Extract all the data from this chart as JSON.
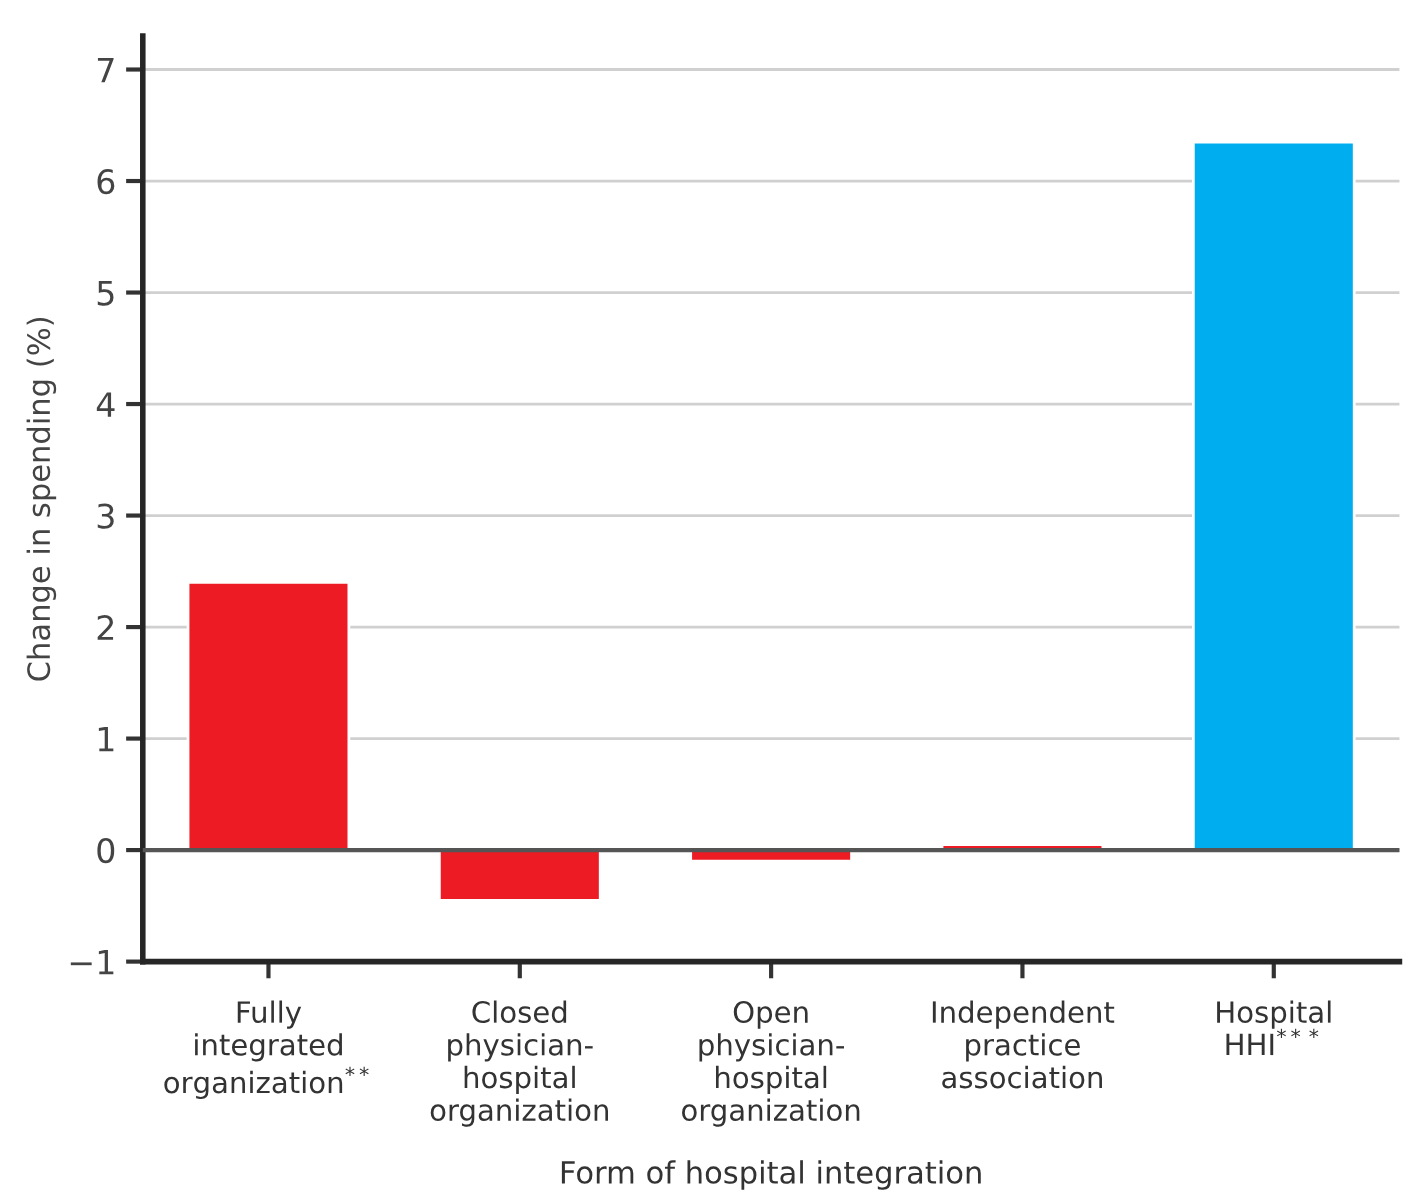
{
  "chart_data": {
    "type": "bar",
    "xlabel": "Form of hospital integration",
    "ylabel": "Change in spending (%)",
    "categories": [
      "Fully\nintegrated\norganization$^{**}$",
      "Closed\nphysician-\nhospital\norganization",
      "Open\nphysician-\nhospital\norganization",
      "Independent\npractice\nassociation",
      "Hospital\nHHI$^{***}$"
    ],
    "values": [
      2.4,
      -0.45,
      -0.1,
      0.05,
      6.35
    ],
    "colors": [
      "#ed1c24",
      "#ed1c24",
      "#ed1c24",
      "#ed1c24",
      "#00aeef"
    ],
    "ylim": [
      -1,
      7.3
    ],
    "yticks": [
      {
        "value": -1,
        "label": "−1"
      },
      0,
      1,
      2,
      3,
      4,
      5,
      6,
      7
    ],
    "ref_lines": [
      {
        "axis": "y",
        "value": 0,
        "color": "#555555"
      }
    ],
    "grid": "y"
  }
}
